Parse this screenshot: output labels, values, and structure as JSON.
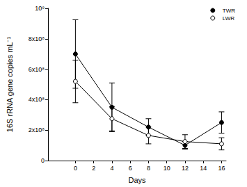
{
  "chart_data": {
    "type": "line",
    "x_label": "Days",
    "y_label": "16S rRNA gene copies mL⁻¹",
    "x": [
      0,
      4,
      8,
      12,
      16
    ],
    "series": [
      {
        "name": "TWR",
        "color": "#000000",
        "marker": "circle",
        "values": [
          700000000,
          350000000,
          220000000,
          100000000,
          250000000
        ],
        "errors": [
          225000000,
          160000000,
          55000000,
          25000000,
          70000000
        ]
      },
      {
        "name": "LWR",
        "color": "#000000",
        "marker": "open_circle",
        "values": [
          520000000,
          275000000,
          165000000,
          125000000,
          110000000
        ],
        "errors": [
          140000000,
          80000000,
          55000000,
          45000000,
          40000000
        ]
      }
    ],
    "xlim": [
      -3,
      16.5
    ],
    "xticks": [
      0,
      2,
      4,
      6,
      8,
      10,
      12,
      14,
      16
    ],
    "ylim": [
      0,
      1000000000
    ],
    "yticks": [
      0,
      {
        "value": 200000000,
        "label": "2x10⁸"
      },
      {
        "value": 400000000,
        "label": "4x10⁸"
      },
      {
        "value": 600000000,
        "label": "6x10⁸"
      },
      {
        "value": 800000000,
        "label": "8x10⁸"
      },
      {
        "value": 1000000000,
        "label": "10⁹"
      }
    ],
    "grid": false,
    "legend": "top-right"
  }
}
